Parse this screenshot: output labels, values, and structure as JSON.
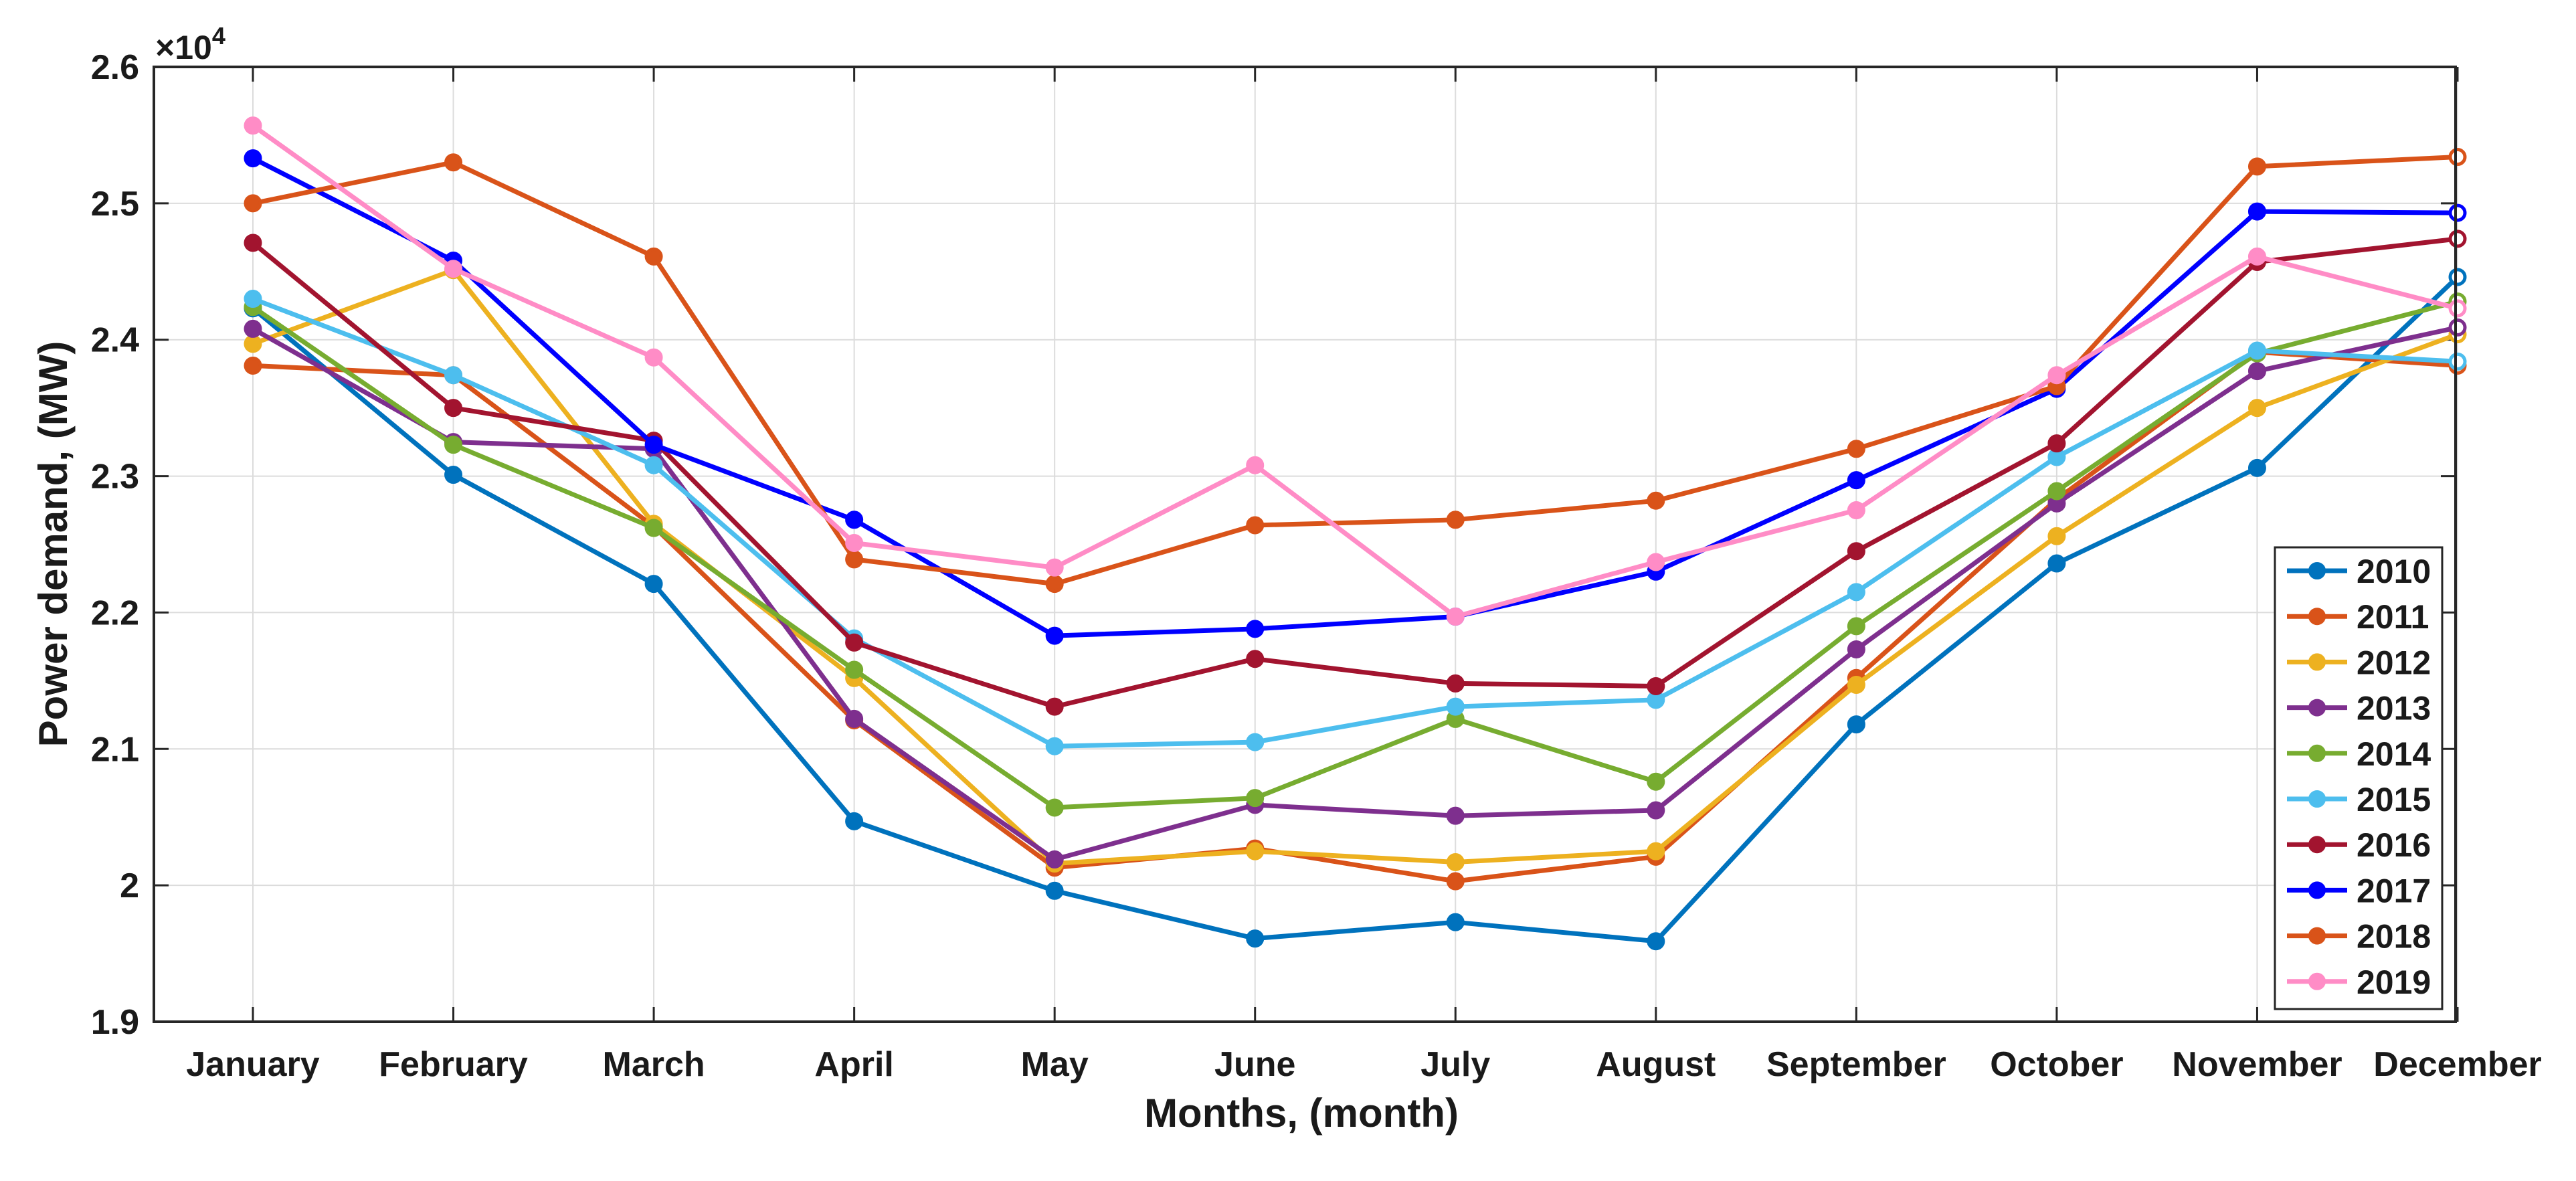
{
  "chart_data": {
    "type": "line",
    "title": "",
    "xlabel": "Months, (month)",
    "ylabel": "Power demand, (MW)",
    "y_multiplier_label": "×10",
    "y_multiplier_exponent": "4",
    "ylim": [
      1.9,
      2.6
    ],
    "yticks": [
      "1.9",
      "2",
      "2.1",
      "2.2",
      "2.3",
      "2.4",
      "2.5",
      "2.6"
    ],
    "categories": [
      "January",
      "February",
      "March",
      "April",
      "May",
      "June",
      "July",
      "August",
      "September",
      "October",
      "November",
      "December"
    ],
    "grid": true,
    "legend_position": "bottom-right",
    "series": [
      {
        "name": "2010",
        "color": "#0072BD",
        "marker": "filled",
        "values": [
          2.423,
          2.301,
          2.221,
          2.047,
          1.996,
          1.961,
          1.973,
          1.959,
          2.118,
          2.236,
          2.306,
          2.446
        ]
      },
      {
        "name": "2011",
        "color": "#D95319",
        "marker": "filled",
        "values": [
          2.381,
          2.374,
          2.263,
          2.121,
          2.013,
          2.027,
          2.003,
          2.021,
          2.152,
          2.283,
          2.391,
          2.381
        ]
      },
      {
        "name": "2012",
        "color": "#EDB120",
        "marker": "filled",
        "values": [
          2.397,
          2.451,
          2.265,
          2.152,
          2.016,
          2.025,
          2.017,
          2.025,
          2.147,
          2.256,
          2.35,
          2.404
        ]
      },
      {
        "name": "2013",
        "color": "#7E2F8E",
        "marker": "filled",
        "values": [
          2.408,
          2.325,
          2.32,
          2.122,
          2.019,
          2.059,
          2.051,
          2.055,
          2.173,
          2.28,
          2.377,
          2.409
        ]
      },
      {
        "name": "2014",
        "color": "#77AC30",
        "marker": "filled",
        "values": [
          2.424,
          2.323,
          2.262,
          2.158,
          2.057,
          2.064,
          2.122,
          2.076,
          2.19,
          2.289,
          2.39,
          2.428
        ]
      },
      {
        "name": "2015",
        "color": "#4DBEEE",
        "marker": "filled",
        "values": [
          2.43,
          2.374,
          2.308,
          2.181,
          2.102,
          2.105,
          2.131,
          2.136,
          2.215,
          2.314,
          2.392,
          2.384
        ]
      },
      {
        "name": "2016",
        "color": "#A2142F",
        "marker": "filled",
        "values": [
          2.471,
          2.35,
          2.326,
          2.178,
          2.131,
          2.166,
          2.148,
          2.146,
          2.245,
          2.324,
          2.457,
          2.474
        ]
      },
      {
        "name": "2017",
        "color": "#0000FF",
        "marker": "filled",
        "values": [
          2.533,
          2.458,
          2.323,
          2.268,
          2.183,
          2.188,
          2.197,
          2.23,
          2.297,
          2.364,
          2.494,
          2.493
        ]
      },
      {
        "name": "2018",
        "color": "#D95319",
        "marker": "filled",
        "values": [
          2.5,
          2.53,
          2.461,
          2.239,
          2.221,
          2.264,
          2.268,
          2.282,
          2.32,
          2.366,
          2.527,
          2.534
        ]
      },
      {
        "name": "2019",
        "color": "#FF8CC6",
        "marker": "filled",
        "values": [
          2.557,
          2.452,
          2.387,
          2.251,
          2.233,
          2.308,
          2.197,
          2.237,
          2.275,
          2.374,
          2.461,
          2.423
        ]
      }
    ]
  }
}
